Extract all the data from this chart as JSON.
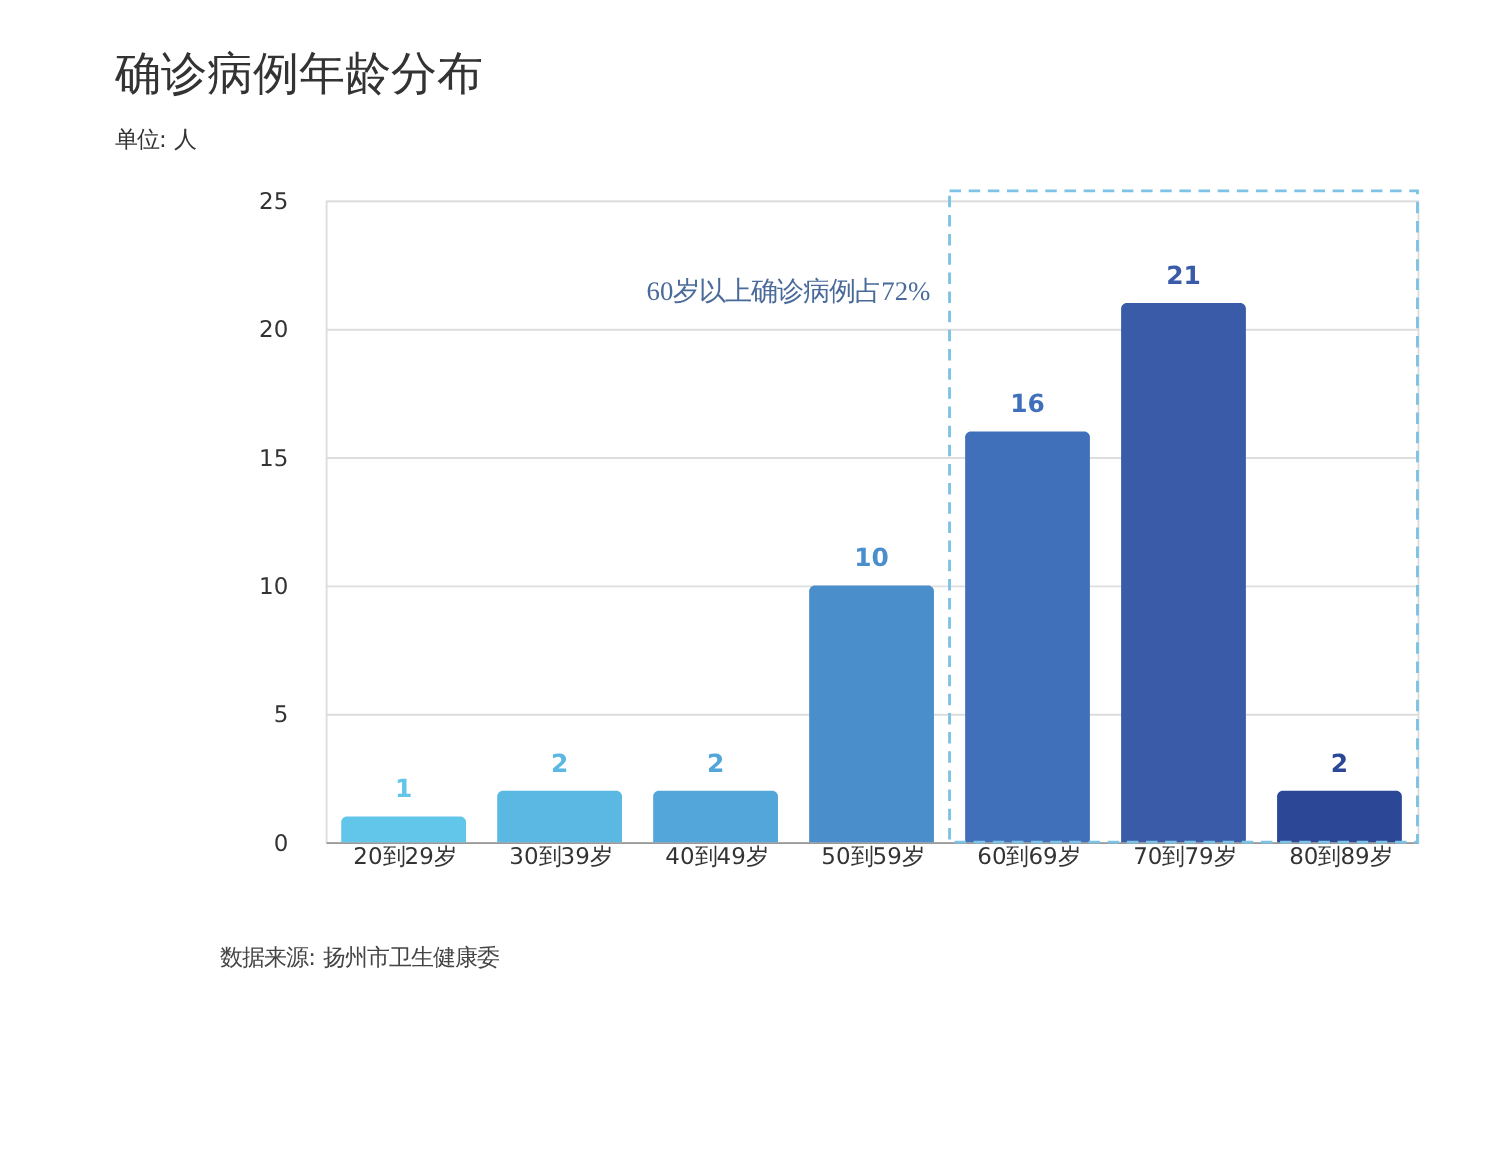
{
  "chart_data": {
    "type": "bar",
    "title": "确诊病例年龄分布",
    "ylabel": "单位: 人",
    "categories": [
      "20到29岁",
      "30到39岁",
      "40到49岁",
      "50到59岁",
      "60到69岁",
      "70到79岁",
      "80到89岁"
    ],
    "values": [
      1,
      2,
      2,
      10,
      16,
      21,
      2
    ],
    "colors": [
      "#62c6ea",
      "#5ab8e3",
      "#52a6da",
      "#4a8fcb",
      "#4170bb",
      "#3a5ca8",
      "#2b4795"
    ],
    "ylim": [
      0,
      25
    ],
    "yticks": [
      0,
      5,
      10,
      15,
      20,
      25
    ],
    "grid": "y",
    "data_labels": true,
    "annotations": [
      "60岁以上确诊病例占72%",
      "数据来源: 扬州市卫生健康委"
    ]
  }
}
